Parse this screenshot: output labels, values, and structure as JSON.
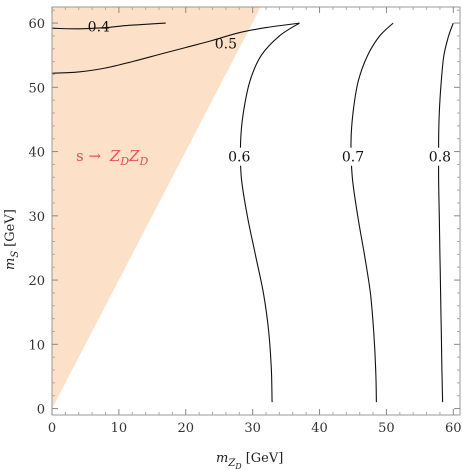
{
  "chart_data": {
    "type": "contour",
    "xlabel": {
      "var": "m",
      "sub": "Z",
      "subsub": "D",
      "unit": "[GeV]"
    },
    "ylabel": {
      "var": "m",
      "sub": "S",
      "unit": "[GeV]"
    },
    "xlim": [
      0,
      61
    ],
    "ylim": [
      -1,
      62.5
    ],
    "xticks": [
      0,
      10,
      20,
      30,
      40,
      50,
      60
    ],
    "yticks": [
      0,
      10,
      20,
      30,
      40,
      50,
      60
    ],
    "region": {
      "label": "s → Z_D Z_D",
      "label_parts": {
        "lhs": "s →",
        "z1": "Z",
        "d1": "D",
        "z2": "Z",
        "d2": "D"
      },
      "color": "#fde0c8",
      "label_color": "#e8505b",
      "polygon": [
        [
          0,
          0
        ],
        [
          0,
          62.5
        ],
        [
          31.2,
          62.5
        ]
      ]
    },
    "contours": [
      {
        "label": "0.4",
        "label_at": [
          7,
          59.5
        ],
        "points": [
          [
            0,
            59.2
          ],
          [
            4,
            59.1
          ],
          [
            8,
            59.3
          ],
          [
            11,
            59.6
          ],
          [
            14,
            59.8
          ],
          [
            17,
            60
          ]
        ]
      },
      {
        "label": "0.5",
        "label_at": [
          26,
          56.8
        ],
        "points": [
          [
            0,
            52.2
          ],
          [
            4,
            52.4
          ],
          [
            8,
            53
          ],
          [
            12,
            54
          ],
          [
            16,
            55.1
          ],
          [
            20,
            56.2
          ],
          [
            24,
            57.3
          ],
          [
            28,
            58.5
          ],
          [
            32,
            59.3
          ],
          [
            37,
            60
          ]
        ]
      },
      {
        "label": "0.6",
        "label_at": [
          28,
          39.2
        ],
        "points": [
          [
            37,
            60
          ],
          [
            34,
            58
          ],
          [
            31.3,
            55
          ],
          [
            29.6,
            51
          ],
          [
            28.6,
            46
          ],
          [
            28.2,
            41.5
          ],
          [
            28.3,
            36
          ],
          [
            29.2,
            30
          ],
          [
            30.4,
            24
          ],
          [
            31.6,
            18
          ],
          [
            32.4,
            12
          ],
          [
            32.8,
            6
          ],
          [
            32.9,
            1
          ]
        ]
      },
      {
        "label": "0.7",
        "label_at": [
          45,
          39.2
        ],
        "points": [
          [
            51,
            60
          ],
          [
            49,
            58
          ],
          [
            47.2,
            55
          ],
          [
            45.8,
            51
          ],
          [
            45,
            46
          ],
          [
            44.7,
            41.5
          ],
          [
            44.9,
            36
          ],
          [
            45.7,
            30
          ],
          [
            46.7,
            24
          ],
          [
            47.6,
            18
          ],
          [
            48.1,
            12
          ],
          [
            48.4,
            6
          ],
          [
            48.5,
            1
          ]
        ]
      },
      {
        "label": "0.8",
        "label_at": [
          58,
          39.2
        ],
        "points": [
          [
            60,
            60
          ],
          [
            59.3,
            58
          ],
          [
            58.6,
            55
          ],
          [
            58.2,
            51
          ],
          [
            57.9,
            46
          ],
          [
            57.8,
            41.5
          ],
          [
            57.8,
            36
          ],
          [
            57.9,
            30
          ],
          [
            58,
            24
          ],
          [
            58.1,
            18
          ],
          [
            58.2,
            12
          ],
          [
            58.3,
            6
          ],
          [
            58.4,
            1
          ]
        ]
      }
    ]
  }
}
